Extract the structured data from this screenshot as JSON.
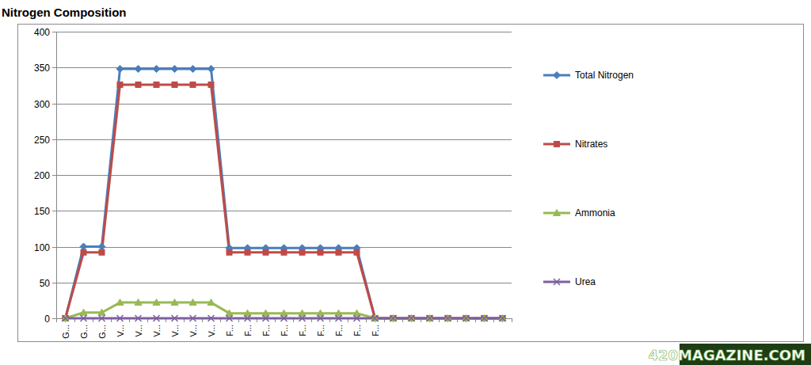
{
  "chart_data": {
    "type": "line",
    "title": "Nitrogen Composition",
    "categories": [
      "G...",
      "G...",
      "G...",
      "V...",
      "V...",
      "V...",
      "V...",
      "V...",
      "V...",
      "F...",
      "F...",
      "F...",
      "F...",
      "F...",
      "F...",
      "F...",
      "F...",
      "F...",
      null,
      null,
      null,
      null,
      null,
      null,
      null
    ],
    "series": [
      {
        "name": "Total Nitrogen",
        "color": "#4a7ebb",
        "marker": "diamond",
        "values": [
          0,
          100,
          100,
          348,
          348,
          348,
          348,
          348,
          348,
          98,
          98,
          98,
          98,
          98,
          98,
          98,
          98,
          0,
          0,
          0,
          0,
          0,
          0,
          0,
          0
        ]
      },
      {
        "name": "Nitrates",
        "color": "#be4b48",
        "marker": "square",
        "values": [
          0,
          92,
          92,
          326,
          326,
          326,
          326,
          326,
          326,
          92,
          92,
          92,
          92,
          92,
          92,
          92,
          92,
          0,
          0,
          0,
          0,
          0,
          0,
          0,
          0
        ]
      },
      {
        "name": "Ammonia",
        "color": "#98b954",
        "marker": "triangle",
        "values": [
          0,
          8,
          8,
          22,
          22,
          22,
          22,
          22,
          22,
          7,
          7,
          7,
          7,
          7,
          7,
          7,
          7,
          0,
          0,
          0,
          0,
          0,
          0,
          0,
          0
        ]
      },
      {
        "name": "Urea",
        "color": "#7d60a0",
        "marker": "x",
        "values": [
          0,
          0,
          0,
          0,
          0,
          0,
          0,
          0,
          0,
          0,
          0,
          0,
          0,
          0,
          0,
          0,
          0,
          0,
          0,
          0,
          0,
          0,
          0,
          0,
          0
        ]
      }
    ],
    "ylim": [
      0,
      400
    ],
    "yticks": [
      0,
      50,
      100,
      150,
      200,
      250,
      300,
      350,
      400
    ],
    "grid": true,
    "legend": "right",
    "annotations": [
      "420MAGAZINE.COM"
    ]
  }
}
